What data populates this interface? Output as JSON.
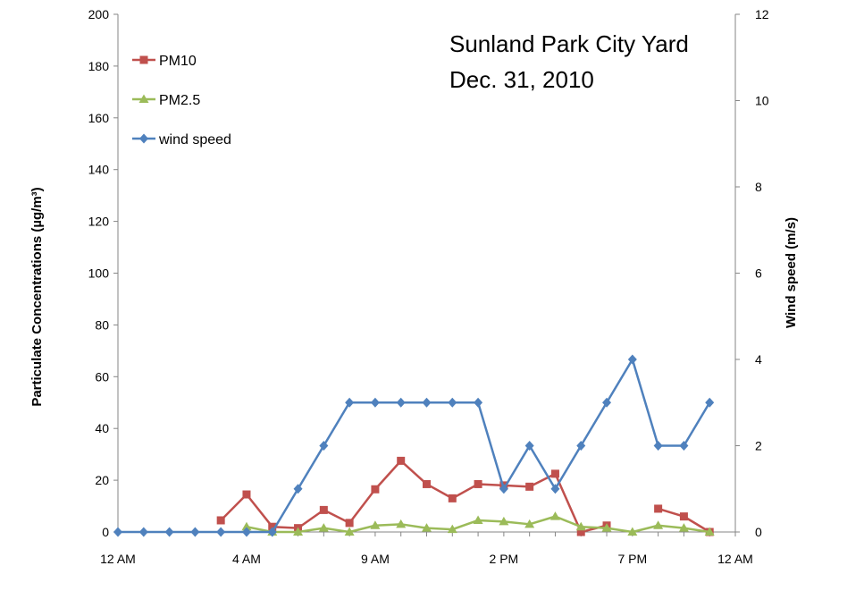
{
  "chart_data": {
    "type": "line",
    "annotation": [
      "Sunland Park City Yard",
      "Dec. 31, 2010"
    ],
    "x_hours": [
      0,
      1,
      2,
      3,
      4,
      5,
      6,
      7,
      8,
      9,
      10,
      11,
      12,
      13,
      14,
      15,
      16,
      17,
      18,
      19,
      20,
      21,
      22,
      23
    ],
    "x_tick_labels": [
      "12 AM",
      "4 AM",
      "9 AM",
      "2 PM",
      "7 PM",
      "12 AM"
    ],
    "ylabel_left": "Particulate Concentrations (µg/m³)",
    "ylabel_right": "Wind speed (m/s)",
    "ylim_left": [
      0,
      200
    ],
    "yticks_left": [
      0,
      20,
      40,
      60,
      80,
      100,
      120,
      140,
      160,
      180,
      200
    ],
    "ylim_right": [
      0,
      12
    ],
    "yticks_right": [
      0,
      2,
      4,
      6,
      8,
      10,
      12
    ],
    "legend_position": "top-left",
    "series": [
      {
        "name": "PM10",
        "axis": "left",
        "color": "#C0504D",
        "marker": "square",
        "values": [
          null,
          null,
          null,
          null,
          4.5,
          14.5,
          2,
          1.5,
          8.5,
          3.5,
          16.5,
          27.5,
          18.5,
          13,
          18.5,
          18,
          17.5,
          22.5,
          0,
          2.5,
          null,
          9,
          6,
          0
        ]
      },
      {
        "name": "PM2.5",
        "axis": "left",
        "color": "#9BBB59",
        "marker": "triangle",
        "values": [
          null,
          null,
          null,
          null,
          null,
          2,
          0,
          0,
          1.5,
          0,
          2.5,
          3,
          1.5,
          1,
          4.5,
          4,
          3,
          6,
          2,
          1.5,
          0,
          2.5,
          1.5,
          0
        ]
      },
      {
        "name": "wind speed",
        "axis": "right",
        "color": "#4F81BD",
        "marker": "diamond",
        "values": [
          0,
          0,
          0,
          0,
          0,
          0,
          0,
          1,
          2,
          3,
          3,
          3,
          3,
          3,
          3,
          1,
          2,
          1,
          2,
          3,
          4,
          2,
          2,
          3
        ]
      }
    ]
  }
}
